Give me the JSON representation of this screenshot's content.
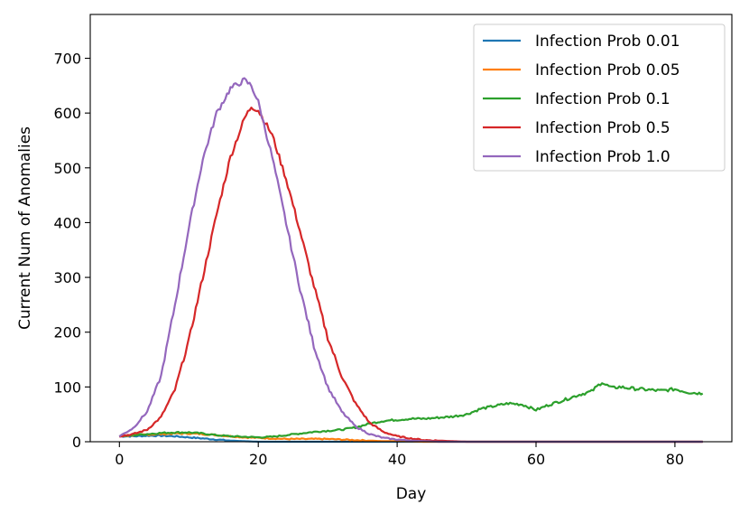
{
  "chart_data": {
    "type": "line",
    "title": "",
    "xlabel": "Day",
    "ylabel": "Current Num of Anomalies",
    "xlim": [
      -4.2,
      88.2
    ],
    "ylim": [
      0,
      780
    ],
    "xticks": [
      0,
      20,
      40,
      60,
      80
    ],
    "yticks": [
      0,
      100,
      200,
      300,
      400,
      500,
      600,
      700
    ],
    "legend_position": "top-right",
    "series": [
      {
        "name": "Infection Prob 0.01",
        "color": "#1f77b4",
        "x": [
          0,
          2,
          4,
          6,
          8,
          10,
          12,
          14,
          16,
          18,
          20,
          30,
          40,
          84
        ],
        "y": [
          10,
          10,
          11,
          11,
          10,
          8,
          6,
          4,
          2,
          1,
          0,
          0,
          0,
          0
        ]
      },
      {
        "name": "Infection Prob 0.05",
        "color": "#ff7f0e",
        "x": [
          0,
          2,
          4,
          6,
          8,
          10,
          12,
          14,
          16,
          18,
          20,
          22,
          24,
          26,
          28,
          30,
          32,
          34,
          36,
          38,
          40,
          44,
          50,
          84
        ],
        "y": [
          10,
          12,
          13,
          14,
          15,
          15,
          14,
          12,
          10,
          8,
          7,
          6,
          5,
          5,
          5,
          5,
          4,
          3,
          2,
          1,
          1,
          0,
          0,
          0
        ]
      },
      {
        "name": "Infection Prob 0.1",
        "color": "#2ca02c",
        "x": [
          0,
          2,
          4,
          6,
          8,
          10,
          12,
          14,
          16,
          18,
          20,
          22,
          24,
          26,
          28,
          30,
          32,
          34,
          36,
          38,
          40,
          42,
          44,
          46,
          48,
          50,
          52,
          54,
          56,
          58,
          60,
          62,
          64,
          66,
          68,
          69.5,
          70,
          71,
          72,
          74,
          76,
          78,
          80,
          82,
          84
        ],
        "y": [
          10,
          12,
          14,
          16,
          17,
          17,
          15,
          12,
          10,
          9,
          8,
          9,
          12,
          15,
          18,
          20,
          22,
          26,
          33,
          38,
          40,
          42,
          42,
          44,
          46,
          50,
          60,
          65,
          70,
          68,
          58,
          68,
          76,
          85,
          92,
          109,
          104,
          98,
          100,
          97,
          95,
          93,
          96,
          90,
          88
        ]
      },
      {
        "name": "Infection Prob 0.5",
        "color": "#d62728",
        "x": [
          0,
          2,
          4,
          6,
          8,
          10,
          12,
          14,
          16,
          18,
          19,
          20,
          22,
          24,
          26,
          28,
          30,
          32,
          34,
          36,
          38,
          40,
          42,
          44,
          46,
          48,
          50,
          84
        ],
        "y": [
          10,
          14,
          22,
          45,
          95,
          185,
          300,
          415,
          520,
          590,
          612,
          605,
          560,
          480,
          385,
          285,
          190,
          120,
          70,
          35,
          18,
          10,
          6,
          3,
          2,
          1,
          0,
          0
        ]
      },
      {
        "name": "Infection Prob 1.0",
        "color": "#9467bd",
        "x": [
          0,
          2,
          4,
          6,
          8,
          10,
          12,
          14,
          16,
          18,
          19,
          20,
          22,
          24,
          26,
          28,
          30,
          32,
          34,
          36,
          38,
          40,
          42,
          44,
          46,
          50,
          84
        ],
        "y": [
          10,
          25,
          55,
          120,
          250,
          390,
          515,
          600,
          645,
          660,
          650,
          620,
          520,
          400,
          280,
          175,
          100,
          55,
          28,
          14,
          7,
          4,
          2,
          1,
          0,
          0,
          0
        ]
      }
    ]
  }
}
